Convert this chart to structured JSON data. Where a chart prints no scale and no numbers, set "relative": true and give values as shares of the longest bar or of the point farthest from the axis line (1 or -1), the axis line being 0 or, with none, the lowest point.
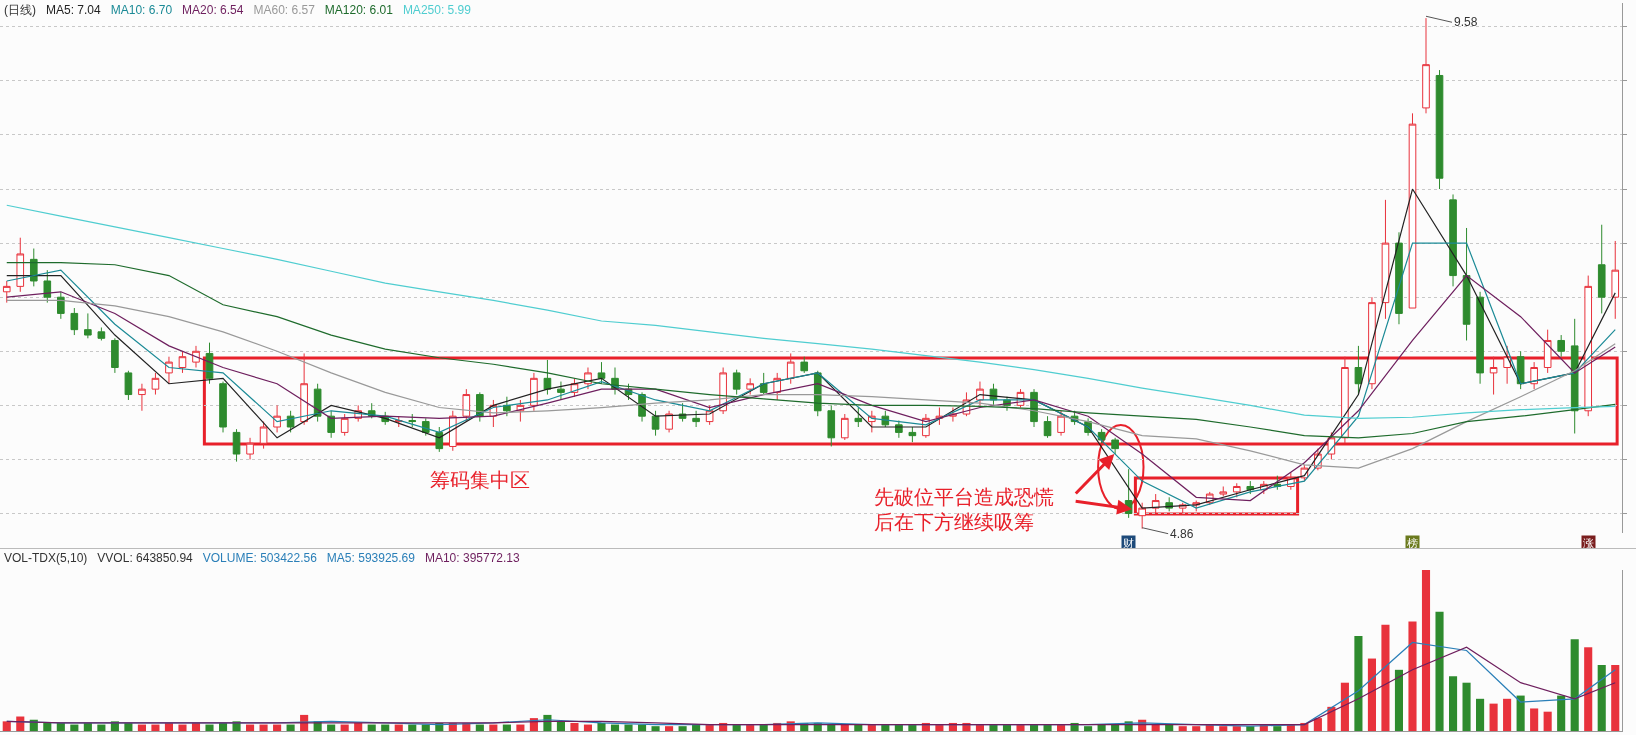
{
  "chart_data": [
    {
      "type": "candlestick",
      "title": "(日线)",
      "categories": [
        null,
        null,
        null,
        null,
        null,
        null,
        null,
        null,
        null,
        null,
        null,
        null,
        null,
        null,
        null,
        null,
        null,
        null,
        null,
        null,
        null,
        null,
        null,
        null,
        null,
        null,
        null,
        null,
        null,
        null,
        null,
        null,
        null,
        null,
        null,
        null,
        null,
        null,
        null,
        null,
        null,
        null,
        null,
        null,
        null,
        null,
        null,
        null,
        null,
        null,
        null,
        null,
        null,
        null,
        null,
        null,
        null,
        null,
        null,
        null,
        null,
        null,
        null,
        null,
        null,
        null,
        null,
        null,
        null,
        null,
        null,
        null,
        null,
        null,
        null,
        null,
        null,
        null,
        null,
        null,
        null,
        null,
        null,
        null,
        null,
        null,
        null,
        null,
        null,
        null,
        null,
        null,
        null,
        null,
        null,
        null,
        null,
        null,
        null,
        null,
        null,
        null,
        null,
        null,
        null,
        null,
        null,
        null,
        null,
        null,
        null,
        null,
        null,
        null,
        null,
        null,
        null,
        null,
        null,
        null
      ],
      "ohlc": [
        [
          7.05,
          7.15,
          6.95,
          7.1
        ],
        [
          7.1,
          7.55,
          7.05,
          7.4
        ],
        [
          7.35,
          7.45,
          7.1,
          7.15
        ],
        [
          7.15,
          7.25,
          6.95,
          7.0
        ],
        [
          7.0,
          7.05,
          6.8,
          6.85
        ],
        [
          6.85,
          6.9,
          6.65,
          6.7
        ],
        [
          6.7,
          6.85,
          6.62,
          6.65
        ],
        [
          6.68,
          6.72,
          6.6,
          6.62
        ],
        [
          6.6,
          6.62,
          6.3,
          6.35
        ],
        [
          6.3,
          6.32,
          6.05,
          6.1
        ],
        [
          6.1,
          6.2,
          5.95,
          6.15
        ],
        [
          6.15,
          6.3,
          6.1,
          6.25
        ],
        [
          6.3,
          6.45,
          6.2,
          6.4
        ],
        [
          6.35,
          6.5,
          6.3,
          6.45
        ],
        [
          6.4,
          6.55,
          6.35,
          6.5
        ],
        [
          6.48,
          6.58,
          6.2,
          6.25
        ],
        [
          6.2,
          6.22,
          5.75,
          5.8
        ],
        [
          5.75,
          5.78,
          5.48,
          5.55
        ],
        [
          5.55,
          5.7,
          5.5,
          5.65
        ],
        [
          5.65,
          5.85,
          5.6,
          5.8
        ],
        [
          5.8,
          6.0,
          5.75,
          5.9
        ],
        [
          5.9,
          5.95,
          5.75,
          5.8
        ],
        [
          5.85,
          6.48,
          5.82,
          6.2
        ],
        [
          6.15,
          6.2,
          5.85,
          5.9
        ],
        [
          5.9,
          5.95,
          5.7,
          5.75
        ],
        [
          5.75,
          5.92,
          5.72,
          5.88
        ],
        [
          5.88,
          6.0,
          5.85,
          5.95
        ],
        [
          5.95,
          6.02,
          5.88,
          5.9
        ],
        [
          5.9,
          5.94,
          5.82,
          5.85
        ],
        [
          5.85,
          5.9,
          5.8,
          5.86
        ],
        [
          5.86,
          5.92,
          5.8,
          5.85
        ],
        [
          5.85,
          5.88,
          5.72,
          5.75
        ],
        [
          5.75,
          5.8,
          5.57,
          5.6
        ],
        [
          5.62,
          5.95,
          5.58,
          5.9
        ],
        [
          5.9,
          6.15,
          5.85,
          6.1
        ],
        [
          6.1,
          6.12,
          5.85,
          5.9
        ],
        [
          5.9,
          6.05,
          5.8,
          6.0
        ],
        [
          6.0,
          6.08,
          5.9,
          5.95
        ],
        [
          5.95,
          6.05,
          5.85,
          6.0
        ],
        [
          6.0,
          6.3,
          5.95,
          6.25
        ],
        [
          6.25,
          6.42,
          6.1,
          6.15
        ],
        [
          6.15,
          6.22,
          6.05,
          6.12
        ],
        [
          6.12,
          6.25,
          6.08,
          6.2
        ],
        [
          6.2,
          6.35,
          6.15,
          6.3
        ],
        [
          6.3,
          6.4,
          6.2,
          6.25
        ],
        [
          6.25,
          6.35,
          6.1,
          6.15
        ],
        [
          6.15,
          6.2,
          6.05,
          6.1
        ],
        [
          6.1,
          6.12,
          5.85,
          5.9
        ],
        [
          5.9,
          5.95,
          5.72,
          5.78
        ],
        [
          5.78,
          5.95,
          5.75,
          5.92
        ],
        [
          5.92,
          6.02,
          5.85,
          5.88
        ],
        [
          5.88,
          5.95,
          5.8,
          5.85
        ],
        [
          5.85,
          6.0,
          5.82,
          5.95
        ],
        [
          5.95,
          6.35,
          5.92,
          6.3
        ],
        [
          6.3,
          6.33,
          6.1,
          6.15
        ],
        [
          6.15,
          6.25,
          6.1,
          6.2
        ],
        [
          6.2,
          6.3,
          6.1,
          6.12
        ],
        [
          6.12,
          6.3,
          6.05,
          6.25
        ],
        [
          6.25,
          6.48,
          6.2,
          6.4
        ],
        [
          6.4,
          6.45,
          6.3,
          6.32
        ],
        [
          6.3,
          6.32,
          5.9,
          5.95
        ],
        [
          5.95,
          6.0,
          5.62,
          5.7
        ],
        [
          5.7,
          5.92,
          5.68,
          5.88
        ],
        [
          5.88,
          5.98,
          5.8,
          5.85
        ],
        [
          5.85,
          5.95,
          5.75,
          5.9
        ],
        [
          5.9,
          5.95,
          5.8,
          5.82
        ],
        [
          5.82,
          5.86,
          5.7,
          5.75
        ],
        [
          5.75,
          5.8,
          5.66,
          5.72
        ],
        [
          5.72,
          5.92,
          5.7,
          5.88
        ],
        [
          5.88,
          5.98,
          5.82,
          5.9
        ],
        [
          5.9,
          5.98,
          5.85,
          5.92
        ],
        [
          5.92,
          6.12,
          5.9,
          6.05
        ],
        [
          6.05,
          6.22,
          6.0,
          6.15
        ],
        [
          6.15,
          6.2,
          6.0,
          6.05
        ],
        [
          6.05,
          6.08,
          5.95,
          6.0
        ],
        [
          6.0,
          6.15,
          5.98,
          6.12
        ],
        [
          6.12,
          6.15,
          5.8,
          5.85
        ],
        [
          5.85,
          5.9,
          5.7,
          5.72
        ],
        [
          5.75,
          5.95,
          5.72,
          5.9
        ],
        [
          5.9,
          5.95,
          5.82,
          5.85
        ],
        [
          5.85,
          5.88,
          5.72,
          5.75
        ],
        [
          5.75,
          5.78,
          5.65,
          5.68
        ],
        [
          5.68,
          5.7,
          5.55,
          5.6
        ],
        [
          5.12,
          5.41,
          4.96,
          5.0
        ],
        [
          4.98,
          5.1,
          4.86,
          5.05
        ],
        [
          5.05,
          5.18,
          5.0,
          5.12
        ],
        [
          5.1,
          5.15,
          5.02,
          5.05
        ],
        [
          5.05,
          5.1,
          5.0,
          5.08
        ],
        [
          5.08,
          5.12,
          5.02,
          5.1
        ],
        [
          5.1,
          5.2,
          5.08,
          5.18
        ],
        [
          5.18,
          5.25,
          5.16,
          5.2
        ],
        [
          5.2,
          5.28,
          5.15,
          5.25
        ],
        [
          5.25,
          5.3,
          5.18,
          5.22
        ],
        [
          5.22,
          5.3,
          5.18,
          5.27
        ],
        [
          5.27,
          5.35,
          5.22,
          5.25
        ],
        [
          5.25,
          5.38,
          5.22,
          5.33
        ],
        [
          5.33,
          5.45,
          5.3,
          5.42
        ],
        [
          5.42,
          5.6,
          5.4,
          5.55
        ],
        [
          5.55,
          5.75,
          5.5,
          5.7
        ],
        [
          5.7,
          6.45,
          5.65,
          6.35
        ],
        [
          6.35,
          6.55,
          6.1,
          6.2
        ],
        [
          6.2,
          7.0,
          6.15,
          6.95
        ],
        [
          6.95,
          7.9,
          6.8,
          7.5
        ],
        [
          7.5,
          7.6,
          6.75,
          6.85
        ],
        [
          6.9,
          8.7,
          6.9,
          8.6
        ],
        [
          8.75,
          9.58,
          8.7,
          9.15
        ],
        [
          9.05,
          9.1,
          8.0,
          8.1
        ],
        [
          7.9,
          7.95,
          7.1,
          7.2
        ],
        [
          7.2,
          7.64,
          6.6,
          6.75
        ],
        [
          7.0,
          7.05,
          6.2,
          6.3
        ],
        [
          6.3,
          6.45,
          6.1,
          6.35
        ],
        [
          6.35,
          6.55,
          6.2,
          6.45
        ],
        [
          6.45,
          6.5,
          6.15,
          6.2
        ],
        [
          6.2,
          6.4,
          6.15,
          6.35
        ],
        [
          6.35,
          6.7,
          6.3,
          6.6
        ],
        [
          6.6,
          6.65,
          6.45,
          6.5
        ],
        [
          6.55,
          6.8,
          5.74,
          5.95
        ],
        [
          5.95,
          7.2,
          5.9,
          7.1
        ],
        [
          7.3,
          7.67,
          6.85,
          7.0
        ],
        [
          7.0,
          7.52,
          6.8,
          7.25
        ]
      ],
      "series": [
        {
          "name": "MA5: 7.04",
          "type": "line",
          "color": "#222222",
          "values": [
            7.2,
            null,
            null,
            null,
            7.2,
            null,
            null,
            null,
            6.65,
            null,
            null,
            null,
            6.2,
            null,
            null,
            null,
            6.25,
            null,
            null,
            null,
            5.7,
            null,
            null,
            null,
            6.0,
            null,
            null,
            null,
            5.88,
            null,
            null,
            null,
            5.7,
            null,
            null,
            null,
            6.0,
            null,
            null,
            null,
            6.15,
            null,
            null,
            null,
            6.25,
            null,
            null,
            null,
            5.9,
            null,
            null,
            null,
            5.92,
            null,
            null,
            null,
            6.2,
            null,
            null,
            null,
            6.3,
            null,
            null,
            null,
            5.8,
            null,
            null,
            null,
            5.8,
            null,
            null,
            null,
            6.1,
            null,
            null,
            null,
            6.05,
            null,
            null,
            null,
            5.8,
            null,
            null,
            null,
            5.05,
            null,
            null,
            null,
            5.08,
            null,
            null,
            null,
            5.22,
            null,
            null,
            null,
            5.35,
            null,
            null,
            null,
            6.1,
            null,
            null,
            null,
            8.0,
            null,
            null,
            null,
            7.2,
            null,
            null,
            null,
            6.2,
            null,
            null,
            null,
            6.3,
            null,
            null,
            7.04
          ]
        },
        {
          "name": "MA10: 6.70",
          "type": "line",
          "color": "#1b8a96",
          "values": [
            7.15,
            null,
            null,
            null,
            7.25,
            null,
            null,
            null,
            6.75,
            null,
            null,
            null,
            6.35,
            null,
            null,
            null,
            6.3,
            null,
            null,
            null,
            5.85,
            null,
            null,
            null,
            5.95,
            null,
            null,
            null,
            5.9,
            null,
            null,
            null,
            5.75,
            null,
            null,
            null,
            5.98,
            null,
            null,
            null,
            6.05,
            null,
            null,
            null,
            6.22,
            null,
            null,
            null,
            6.05,
            null,
            null,
            null,
            5.95,
            null,
            null,
            null,
            6.2,
            null,
            null,
            null,
            6.3,
            null,
            null,
            null,
            5.88,
            null,
            null,
            null,
            5.82,
            null,
            null,
            null,
            6.05,
            null,
            null,
            null,
            6.05,
            null,
            null,
            null,
            5.8,
            null,
            null,
            null,
            5.3,
            null,
            null,
            null,
            5.05,
            null,
            null,
            null,
            5.2,
            null,
            null,
            null,
            5.3,
            null,
            null,
            null,
            5.9,
            null,
            null,
            null,
            7.5,
            null,
            null,
            null,
            7.5,
            null,
            null,
            null,
            6.2,
            null,
            null,
            null,
            6.3,
            null,
            null,
            6.7
          ]
        },
        {
          "name": "MA20: 6.54",
          "type": "line",
          "color": "#6e1f5e",
          "values": [
            7.0,
            null,
            null,
            null,
            7.05,
            null,
            null,
            null,
            6.85,
            null,
            null,
            null,
            6.55,
            null,
            null,
            null,
            6.35,
            null,
            null,
            null,
            6.2,
            null,
            null,
            null,
            5.88,
            null,
            null,
            null,
            5.9,
            null,
            null,
            null,
            5.88,
            null,
            null,
            null,
            5.9,
            null,
            null,
            null,
            6.02,
            null,
            null,
            null,
            6.15,
            null,
            null,
            null,
            6.15,
            null,
            null,
            null,
            5.98,
            null,
            null,
            null,
            6.1,
            null,
            null,
            null,
            6.2,
            null,
            null,
            null,
            6.0,
            null,
            null,
            null,
            5.85,
            null,
            null,
            null,
            5.98,
            null,
            null,
            null,
            6.05,
            null,
            null,
            null,
            5.9,
            null,
            null,
            null,
            5.55,
            null,
            null,
            null,
            5.15,
            null,
            null,
            null,
            5.12,
            null,
            null,
            null,
            5.47,
            null,
            null,
            null,
            5.95,
            null,
            null,
            null,
            6.6,
            null,
            null,
            null,
            7.2,
            null,
            null,
            null,
            6.82,
            null,
            null,
            null,
            6.3,
            null,
            null,
            6.54
          ]
        },
        {
          "name": "MA60: 6.57",
          "type": "line",
          "color": "#999999",
          "values": [
            6.97,
            null,
            null,
            null,
            6.97,
            null,
            null,
            null,
            6.92,
            null,
            null,
            null,
            6.82,
            null,
            null,
            null,
            6.68,
            null,
            null,
            null,
            6.5,
            null,
            null,
            null,
            6.3,
            null,
            null,
            null,
            6.12,
            null,
            null,
            null,
            5.98,
            null,
            null,
            null,
            5.93,
            null,
            null,
            null,
            5.95,
            null,
            null,
            null,
            5.98,
            null,
            null,
            null,
            6.02,
            null,
            null,
            null,
            6.05,
            null,
            null,
            null,
            6.1,
            null,
            null,
            null,
            6.1,
            null,
            null,
            null,
            6.08,
            null,
            null,
            null,
            6.05,
            null,
            null,
            null,
            6.02,
            null,
            null,
            null,
            5.95,
            null,
            null,
            null,
            5.85,
            null,
            null,
            null,
            5.72,
            null,
            null,
            null,
            5.69,
            null,
            null,
            null,
            5.58,
            null,
            null,
            null,
            5.45,
            null,
            null,
            null,
            5.42,
            null,
            null,
            null,
            5.6,
            null,
            null,
            null,
            5.85,
            null,
            null,
            null,
            6.08,
            null,
            null,
            null,
            6.32,
            null,
            null,
            6.57
          ]
        },
        {
          "name": "MA120: 6.01",
          "type": "line",
          "color": "#1e6b2c",
          "values": [
            7.32,
            null,
            null,
            null,
            7.32,
            null,
            null,
            null,
            7.3,
            null,
            null,
            null,
            7.2,
            null,
            null,
            null,
            6.93,
            null,
            null,
            null,
            6.82,
            null,
            null,
            null,
            6.65,
            null,
            null,
            null,
            6.52,
            null,
            null,
            null,
            6.44,
            null,
            null,
            null,
            6.38,
            null,
            null,
            null,
            6.3,
            null,
            null,
            null,
            6.2,
            null,
            null,
            null,
            6.15,
            null,
            null,
            null,
            6.1,
            null,
            null,
            null,
            6.06,
            null,
            null,
            null,
            6.02,
            null,
            null,
            null,
            6.0,
            null,
            null,
            null,
            6.0,
            null,
            null,
            null,
            5.99,
            null,
            null,
            null,
            5.97,
            null,
            null,
            null,
            5.93,
            null,
            null,
            null,
            5.9,
            null,
            null,
            null,
            5.87,
            null,
            null,
            null,
            5.8,
            null,
            null,
            null,
            5.72,
            null,
            null,
            null,
            5.7,
            null,
            null,
            null,
            5.74,
            null,
            null,
            null,
            5.85,
            null,
            null,
            null,
            5.9,
            null,
            null,
            null,
            5.96,
            null,
            null,
            6.01
          ]
        },
        {
          "name": "MA250: 5.99",
          "type": "line",
          "color": "#4fcdd0",
          "values": [
            7.85,
            null,
            null,
            null,
            7.75,
            null,
            null,
            null,
            7.65,
            null,
            null,
            null,
            7.55,
            null,
            null,
            null,
            7.45,
            null,
            null,
            null,
            7.35,
            null,
            null,
            null,
            7.24,
            null,
            null,
            null,
            7.13,
            null,
            null,
            null,
            7.05,
            null,
            null,
            null,
            6.97,
            null,
            null,
            null,
            6.88,
            null,
            null,
            null,
            6.78,
            null,
            null,
            null,
            6.74,
            null,
            null,
            null,
            6.68,
            null,
            null,
            null,
            6.62,
            null,
            null,
            null,
            6.57,
            null,
            null,
            null,
            6.52,
            null,
            null,
            null,
            6.46,
            null,
            null,
            null,
            6.4,
            null,
            null,
            null,
            6.33,
            null,
            null,
            null,
            6.25,
            null,
            null,
            null,
            6.16,
            null,
            null,
            null,
            6.08,
            null,
            null,
            null,
            6.0,
            null,
            null,
            null,
            5.91,
            null,
            null,
            null,
            5.88,
            null,
            null,
            null,
            5.89,
            null,
            null,
            null,
            5.93,
            null,
            null,
            null,
            5.96,
            null,
            null,
            null,
            5.98,
            null,
            null,
            5.99
          ]
        }
      ],
      "ylim": [
        4.82,
        9.72
      ],
      "yticks": [
        {
          "value": 5,
          "label": null
        },
        {
          "value": 5.5,
          "label": null
        },
        {
          "value": 6,
          "label": null
        },
        {
          "value": 6.5,
          "label": null
        },
        {
          "value": 7,
          "label": null
        },
        {
          "value": 7.5,
          "label": null
        },
        {
          "value": 8,
          "label": null
        },
        {
          "value": 8.5,
          "label": null
        },
        {
          "value": 9,
          "label": null
        },
        {
          "value": 9.5,
          "label": null
        }
      ],
      "grid": "y",
      "annotations": [
        "9.58",
        "4.86",
        "筹码集中区",
        "先破位平台造成恐慌",
        "后在下方继续吸筹",
        "财",
        "榜",
        "涨"
      ]
    },
    {
      "type": "bar",
      "title": "VOL-TDX(5,10)",
      "subtitle": "VVOL: 643850.94",
      "relative": true,
      "annotations": [
        "VOLUME: 503422.56"
      ],
      "categories": [
        null,
        null,
        null,
        null,
        null,
        null,
        null,
        null,
        null,
        null,
        null,
        null,
        null,
        null,
        null,
        null,
        null,
        null,
        null,
        null,
        null,
        null,
        null,
        null,
        null,
        null,
        null,
        null,
        null,
        null,
        null,
        null,
        null,
        null,
        null,
        null,
        null,
        null,
        null,
        null,
        null,
        null,
        null,
        null,
        null,
        null,
        null,
        null,
        null,
        null,
        null,
        null,
        null,
        null,
        null,
        null,
        null,
        null,
        null,
        null,
        null,
        null,
        null,
        null,
        null,
        null,
        null,
        null,
        null,
        null,
        null,
        null,
        null,
        null,
        null,
        null,
        null,
        null,
        null,
        null,
        null,
        null,
        null,
        null,
        null,
        null,
        null,
        null,
        null,
        null,
        null,
        null,
        null,
        null,
        null,
        null,
        null,
        null,
        null,
        null,
        null,
        null,
        null,
        null,
        null,
        null,
        null,
        null,
        null,
        null,
        null,
        null,
        null,
        null,
        null,
        null,
        null,
        null,
        null,
        null
      ],
      "series": [
        {
          "type": "bar",
          "colors": [
            "#e8323c",
            "#e8323c",
            "#2e8b2e",
            "#2e8b2e",
            "#2e8b2e",
            "#2e8b2e",
            "#2e8b2e",
            "#2e8b2e",
            "#2e8b2e",
            "#2e8b2e",
            "#e8323c",
            "#e8323c",
            "#e8323c",
            "#e8323c",
            "#e8323c",
            "#2e8b2e",
            "#2e8b2e",
            "#2e8b2e",
            "#e8323c",
            "#e8323c",
            "#e8323c",
            "#2e8b2e",
            "#e8323c",
            "#2e8b2e",
            "#2e8b2e",
            "#e8323c",
            "#e8323c",
            "#2e8b2e",
            "#2e8b2e",
            "#e8323c",
            "#2e8b2e",
            "#2e8b2e",
            "#2e8b2e",
            "#e8323c",
            "#e8323c",
            "#2e8b2e",
            "#e8323c",
            "#2e8b2e",
            "#e8323c",
            "#e8323c",
            "#2e8b2e",
            "#2e8b2e",
            "#e8323c",
            "#e8323c",
            "#2e8b2e",
            "#2e8b2e",
            "#2e8b2e",
            "#2e8b2e",
            "#2e8b2e",
            "#e8323c",
            "#2e8b2e",
            "#2e8b2e",
            "#e8323c",
            "#e8323c",
            "#2e8b2e",
            "#e8323c",
            "#2e8b2e",
            "#e8323c",
            "#e8323c",
            "#2e8b2e",
            "#2e8b2e",
            "#2e8b2e",
            "#e8323c",
            "#2e8b2e",
            "#e8323c",
            "#2e8b2e",
            "#2e8b2e",
            "#2e8b2e",
            "#e8323c",
            "#e8323c",
            "#e8323c",
            "#e8323c",
            "#e8323c",
            "#2e8b2e",
            "#2e8b2e",
            "#e8323c",
            "#2e8b2e",
            "#2e8b2e",
            "#e8323c",
            "#2e8b2e",
            "#2e8b2e",
            "#2e8b2e",
            "#2e8b2e",
            "#2e8b2e",
            "#e8323c",
            "#e8323c",
            "#2e8b2e",
            "#e8323c",
            "#e8323c",
            "#e8323c",
            "#e8323c",
            "#e8323c",
            "#2e8b2e",
            "#e8323c",
            "#2e8b2e",
            "#e8323c",
            "#e8323c",
            "#e8323c",
            "#e8323c",
            "#e8323c",
            "#2e8b2e",
            "#e8323c",
            "#e8323c",
            "#2e8b2e",
            "#e8323c",
            "#e8323c",
            "#2e8b2e",
            "#2e8b2e",
            "#2e8b2e",
            "#2e8b2e",
            "#e8323c",
            "#e8323c",
            "#2e8b2e",
            "#e8323c",
            "#e8323c",
            "#2e8b2e",
            "#2e8b2e",
            "#e8323c",
            "#2e8b2e",
            "#e8323c"
          ],
          "values": [
            0.06,
            0.09,
            0.07,
            0.05,
            0.05,
            0.04,
            0.05,
            0.04,
            0.06,
            0.05,
            0.04,
            0.04,
            0.05,
            0.04,
            0.05,
            0.04,
            0.05,
            0.06,
            0.04,
            0.04,
            0.04,
            0.04,
            0.1,
            0.06,
            0.04,
            0.04,
            0.05,
            0.04,
            0.04,
            0.04,
            0.04,
            0.04,
            0.05,
            0.05,
            0.05,
            0.04,
            0.04,
            0.04,
            0.04,
            0.08,
            0.1,
            0.06,
            0.05,
            0.04,
            0.05,
            0.04,
            0.04,
            0.04,
            0.03,
            0.03,
            0.03,
            0.04,
            0.04,
            0.05,
            0.04,
            0.04,
            0.04,
            0.05,
            0.06,
            0.05,
            0.05,
            0.04,
            0.04,
            0.04,
            0.04,
            0.04,
            0.04,
            0.04,
            0.05,
            0.04,
            0.05,
            0.05,
            0.04,
            0.04,
            0.04,
            0.04,
            0.04,
            0.04,
            0.04,
            0.05,
            0.03,
            0.04,
            0.04,
            0.06,
            0.07,
            0.04,
            0.04,
            0.03,
            0.03,
            0.04,
            0.03,
            0.03,
            0.03,
            0.04,
            0.03,
            0.04,
            0.05,
            0.08,
            0.15,
            0.3,
            0.59,
            0.45,
            0.66,
            0.38,
            0.68,
            1,
            0.74,
            0.34,
            0.3,
            0.2,
            0.17,
            0.2,
            0.22,
            0.14,
            0.12,
            0.22,
            0.57,
            0.52,
            0.41,
            0.41
          ]
        },
        {
          "name": "MA5: 593925.69",
          "type": "line",
          "color": "#2a7fb8",
          "values": [
            0.06,
            null,
            null,
            null,
            0.05,
            null,
            null,
            null,
            0.05,
            null,
            null,
            null,
            0.05,
            null,
            null,
            null,
            0.05,
            null,
            null,
            null,
            0.05,
            null,
            null,
            null,
            0.06,
            null,
            null,
            null,
            0.05,
            null,
            null,
            null,
            0.04,
            null,
            null,
            null,
            0.05,
            null,
            null,
            null,
            0.07,
            null,
            null,
            null,
            0.05,
            null,
            null,
            null,
            0.04,
            null,
            null,
            null,
            0.04,
            null,
            null,
            null,
            0.04,
            null,
            null,
            null,
            0.05,
            null,
            null,
            null,
            0.04,
            null,
            null,
            null,
            0.04,
            null,
            null,
            null,
            0.04,
            null,
            null,
            null,
            0.04,
            null,
            null,
            null,
            0.04,
            null,
            null,
            null,
            0.05,
            null,
            null,
            null,
            0.04,
            null,
            null,
            null,
            0.03,
            null,
            null,
            null,
            0.04,
            null,
            null,
            null,
            0.25,
            null,
            null,
            null,
            0.55,
            null,
            null,
            null,
            0.5,
            null,
            null,
            null,
            0.18,
            null,
            null,
            null,
            0.2,
            null,
            null,
            0.38
          ]
        },
        {
          "name": "MA10: 395772.13",
          "type": "line",
          "color": "#6e1f5e",
          "values": [
            0.06,
            null,
            null,
            null,
            0.05,
            null,
            null,
            null,
            0.05,
            null,
            null,
            null,
            0.05,
            null,
            null,
            null,
            0.05,
            null,
            null,
            null,
            0.05,
            null,
            null,
            null,
            0.05,
            null,
            null,
            null,
            0.05,
            null,
            null,
            null,
            0.05,
            null,
            null,
            null,
            0.05,
            null,
            null,
            null,
            0.06,
            null,
            null,
            null,
            0.06,
            null,
            null,
            null,
            0.05,
            null,
            null,
            null,
            0.04,
            null,
            null,
            null,
            0.04,
            null,
            null,
            null,
            0.04,
            null,
            null,
            null,
            0.04,
            null,
            null,
            null,
            0.04,
            null,
            null,
            null,
            0.04,
            null,
            null,
            null,
            0.04,
            null,
            null,
            null,
            0.04,
            null,
            null,
            null,
            0.04,
            null,
            null,
            null,
            0.04,
            null,
            null,
            null,
            0.04,
            null,
            null,
            null,
            0.04,
            null,
            null,
            null,
            0.2,
            null,
            null,
            null,
            0.38,
            null,
            null,
            null,
            0.52,
            null,
            null,
            null,
            0.3,
            null,
            null,
            null,
            0.2,
            null,
            null,
            0.3
          ]
        }
      ]
    }
  ]
}
